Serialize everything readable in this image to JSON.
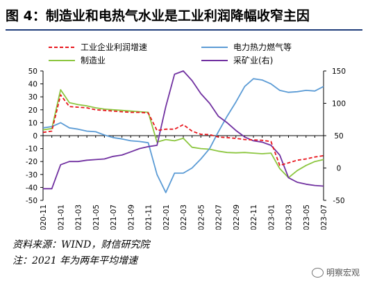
{
  "title": "图 4：制造业和电热气水业是工业利润降幅收窄主因",
  "footer": {
    "source": "资料来源：WIND，财信研究院",
    "note": "注：2021 年为两年平均增速"
  },
  "watermark": "明察宏观",
  "chart_data": {
    "type": "line",
    "x": [
      "2020-11",
      "2020-12",
      "2021-01",
      "2021-02",
      "2021-03",
      "2021-04",
      "2021-05",
      "2021-06",
      "2021-07",
      "2021-08",
      "2021-09",
      "2021-10",
      "2021-11",
      "2021-12",
      "2022-01",
      "2022-02",
      "2022-03",
      "2022-04",
      "2022-05",
      "2022-06",
      "2022-07",
      "2022-08",
      "2022-09",
      "2022-10",
      "2022-11",
      "2022-12",
      "2023-01",
      "2023-02",
      "2023-03",
      "2023-04",
      "2023-05",
      "2023-06",
      "2023-07"
    ],
    "xticks": [
      "2020-11",
      "2021-01",
      "2021-03",
      "2021-05",
      "2021-07",
      "2021-09",
      "2021-11",
      "2022-01",
      "2022-03",
      "2022-05",
      "2022-07",
      "2022-09",
      "2022-11",
      "2023-01",
      "2023-03",
      "2023-05",
      "2023-07"
    ],
    "y_left": {
      "range": [
        -50,
        50
      ],
      "ticks": [
        -50,
        -40,
        -30,
        -20,
        -10,
        0,
        10,
        20,
        30,
        40,
        50
      ]
    },
    "y_right": {
      "range": [
        -50,
        150
      ],
      "ticks": [
        -50,
        0,
        50,
        100,
        150
      ]
    },
    "legend_placement": "top",
    "series": [
      {
        "name": "工业企业利润增速",
        "axis": "left",
        "color": "#e8141b",
        "style": "dashed",
        "values": [
          2.5,
          3.5,
          31.5,
          22.5,
          22,
          21.5,
          20,
          19.5,
          19,
          18.5,
          18,
          18,
          17.5,
          4,
          5,
          5,
          8.5,
          3.5,
          1,
          0.8,
          -1.1,
          -1.5,
          -2.1,
          -3,
          -3.3,
          -3.6,
          -4.5,
          -23,
          -21,
          -19,
          -18,
          -16.5,
          -15.5
        ]
      },
      {
        "name": "制造业",
        "axis": "left",
        "color": "#8cc63f",
        "style": "solid",
        "values": [
          4.5,
          5.5,
          35.5,
          25.5,
          24,
          23,
          21.5,
          20.5,
          20,
          19.5,
          19,
          18.5,
          18,
          -5,
          -3,
          -4,
          -2,
          -9,
          -10,
          -10.5,
          -12,
          -13,
          -13.3,
          -13,
          -13.5,
          -14,
          -13.5,
          -25.5,
          -32.5,
          -27,
          -23,
          -20,
          -18.5
        ]
      },
      {
        "name": "电力热力燃气等",
        "axis": "left",
        "color": "#5b9bd5",
        "style": "solid",
        "values": [
          6,
          7,
          10,
          6,
          5,
          3.5,
          3,
          0.5,
          -1.5,
          -2.5,
          -4,
          -4.5,
          -5.5,
          -30,
          -44,
          -29,
          -29,
          -25,
          -18,
          -10,
          3,
          15,
          26,
          38,
          44,
          43,
          40,
          35,
          33.5,
          34,
          35,
          34.5,
          38
        ]
      },
      {
        "name": "采矿业(右)",
        "axis": "right",
        "color": "#7030a0",
        "style": "solid",
        "values": [
          -32,
          -32,
          5,
          10,
          10,
          12,
          13,
          14,
          18,
          20,
          25,
          30,
          33,
          35,
          95,
          145,
          150,
          135,
          115,
          100,
          80,
          70,
          58,
          48,
          42,
          40,
          35,
          20,
          -15,
          -22,
          -25,
          -27,
          -28
        ]
      }
    ]
  }
}
